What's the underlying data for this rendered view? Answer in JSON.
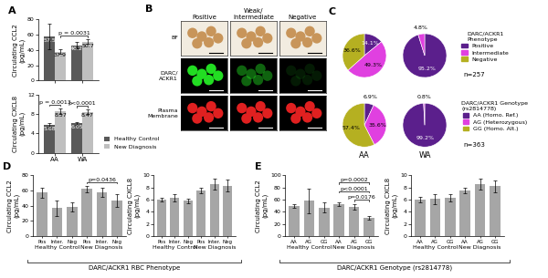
{
  "chart_data": [
    {
      "type": "bar",
      "panel": "A",
      "ylabel": "Circulating CCL2\n(pg/mL)",
      "categories": [
        "AA",
        "WA"
      ],
      "series": [
        {
          "name": "Healthy Control",
          "color": "#595959",
          "values": [
            57.5,
            46.2
          ],
          "errors": [
            17,
            4
          ]
        },
        {
          "name": "New Diagnosis",
          "color": "#bfbfbf",
          "values": [
            37.9,
            50.7
          ],
          "errors": [
            3,
            3
          ]
        }
      ],
      "ylim": [
        0,
        80
      ],
      "yticks": [
        0,
        20,
        40,
        60,
        80
      ],
      "data_labels": true,
      "tick_labels": "y",
      "comparisons": [
        {
          "label": "p = 0.0031",
          "between": [
            [
              0,
              1
            ],
            [
              1,
              1
            ]
          ]
        }
      ]
    },
    {
      "type": "bar",
      "ylabel": "Circulating CXCL8\n(pg/mL)",
      "categories": [
        "AA",
        "WA"
      ],
      "series": [
        {
          "name": "Healthy Control",
          "color": "#595959",
          "values": [
            5.68,
            6.05
          ],
          "errors": [
            0.4,
            0.3
          ]
        },
        {
          "name": "New Diagnosis",
          "color": "#bfbfbf",
          "values": [
            8.57,
            8.47
          ],
          "errors": [
            0.6,
            0.4
          ]
        }
      ],
      "ylim": [
        0,
        12
      ],
      "yticks": [
        0,
        4,
        8,
        12
      ],
      "data_labels": true,
      "legend": "lower left",
      "comparisons": [
        {
          "label": "p = 0.0013",
          "between": [
            [
              0,
              0
            ],
            [
              0,
              1
            ]
          ]
        },
        {
          "label": "p<0.0001",
          "between": [
            [
              1,
              0
            ],
            [
              1,
              1
            ]
          ]
        }
      ]
    },
    {
      "type": "pie",
      "panel": "C",
      "categories": [
        "Positive",
        "Intermediate",
        "Negative"
      ],
      "values": [
        14.1,
        49.3,
        36.6
      ],
      "value_labels": [
        "14.1%",
        "49.3%",
        "36.6%"
      ],
      "colors": [
        "#5b1f8c",
        "#e040e0",
        "#b5b021"
      ],
      "legend": "upper left",
      "legend_title": "DARC/ACKR1\nPhenotype",
      "n_label": "n=257"
    },
    {
      "type": "pie",
      "categories": [
        "Positive",
        "Intermediate"
      ],
      "values": [
        95.2,
        4.8
      ],
      "value_labels": [
        "95.2%",
        "4.8%"
      ],
      "colors": [
        "#5b1f8c",
        "#e040e0"
      ]
    },
    {
      "type": "pie",
      "title": "AA",
      "categories": [
        "AA (Homo. Ref.)",
        "AG (Heterozygous)",
        "GG (Homo. Alt.)"
      ],
      "values": [
        6.9,
        35.6,
        57.4
      ],
      "value_labels": [
        "6.9%",
        "35.6%",
        "57.4%"
      ],
      "colors": [
        "#5b1f8c",
        "#e040e0",
        "#b5b021"
      ],
      "legend": "upper left",
      "legend_title": "DARC/ACKR1 Genotype\n(rs2814778)",
      "n_label": "n=363"
    },
    {
      "type": "pie",
      "title": "WA",
      "categories": [
        "AA (Homo. Ref.)",
        "AG (Heterozygous)"
      ],
      "values": [
        99.2,
        0.8
      ],
      "value_labels": [
        "99.2%",
        "0.8%"
      ],
      "colors": [
        "#5b1f8c",
        "#e040e0"
      ]
    },
    {
      "type": "bar",
      "panel": "D",
      "ylabel": "Circulating CCL2\n(pg/mL)",
      "categories": [
        "Pos",
        "Inter.",
        "Neg",
        "Pos",
        "Inter.",
        "Neg"
      ],
      "values": [
        57,
        37,
        39,
        62,
        57,
        47
      ],
      "errors": [
        7,
        10,
        6,
        4,
        6,
        8
      ],
      "color": "#a6a6a6",
      "groups": [
        {
          "label": "Healthy Control",
          "members": [
            0,
            1,
            2
          ]
        },
        {
          "label": "New Diagnosis",
          "members": [
            3,
            4,
            5
          ]
        }
      ],
      "ylim": [
        0,
        80
      ],
      "yticks": [
        0,
        20,
        40,
        60,
        80
      ],
      "comparisons": [
        {
          "label": "p=0.0436",
          "between": [
            3,
            5
          ]
        }
      ],
      "footer": "DARC/ACKR1 RBC Phenotype"
    },
    {
      "type": "bar",
      "ylabel": "Circulating CXCL8\n(pg/mL)",
      "categories": [
        "Pos",
        "Inter.",
        "Neg",
        "Pos",
        "Inter.",
        "Neg"
      ],
      "values": [
        6,
        6.3,
        5.8,
        7.5,
        8.5,
        8.3
      ],
      "errors": [
        0.3,
        0.6,
        0.4,
        0.4,
        0.9,
        1.0
      ],
      "color": "#a6a6a6",
      "groups": [
        {
          "label": "Healthy Control",
          "members": [
            0,
            1,
            2
          ]
        },
        {
          "label": "New Diagnosis",
          "members": [
            3,
            4,
            5
          ]
        }
      ],
      "ylim": [
        0,
        10
      ],
      "yticks": [
        0,
        2,
        4,
        6,
        8,
        10
      ]
    },
    {
      "type": "bar",
      "panel": "E",
      "ylabel": "Circulating CCL2\n(pg/mL)",
      "categories": [
        "AA",
        "AG",
        "GG",
        "AA",
        "AG",
        "GG"
      ],
      "values": [
        50,
        58,
        47,
        52,
        48,
        30
      ],
      "errors": [
        3,
        20,
        8,
        3,
        5,
        3
      ],
      "color": "#a6a6a6",
      "groups": [
        {
          "label": "Healthy Control",
          "members": [
            0,
            1,
            2
          ]
        },
        {
          "label": "New Diagnosis",
          "members": [
            3,
            4,
            5
          ]
        }
      ],
      "ylim": [
        0,
        100
      ],
      "yticks": [
        0,
        20,
        40,
        60,
        80,
        100
      ],
      "comparisons": [
        {
          "label": "p=0.0176",
          "between": [
            4,
            5
          ]
        },
        {
          "label": "p<0.0001",
          "between": [
            3,
            5
          ]
        },
        {
          "label": "p=0.0002",
          "between": [
            3,
            5
          ]
        }
      ],
      "footer": "DARC/ACKR1 Genotype (rs2814778)"
    },
    {
      "type": "bar",
      "ylabel": "Circulating CXCL8\n(pg/mL)",
      "categories": [
        "AA",
        "AG",
        "GG",
        "AA",
        "AG",
        "GG"
      ],
      "values": [
        6,
        6.1,
        6.3,
        7.5,
        8.5,
        8.2
      ],
      "errors": [
        0.4,
        0.8,
        0.6,
        0.4,
        0.9,
        1.0
      ],
      "color": "#a6a6a6",
      "groups": [
        {
          "label": "Healthy Control",
          "members": [
            0,
            1,
            2
          ]
        },
        {
          "label": "New Diagnosis",
          "members": [
            3,
            4,
            5
          ]
        }
      ],
      "ylim": [
        0,
        10
      ],
      "yticks": [
        0,
        2,
        4,
        6,
        8,
        10
      ]
    }
  ],
  "image_panel": {
    "panel": "B",
    "columns": [
      "Positive",
      "Weak/\nIntermediate",
      "Negative"
    ],
    "rows": [
      "BF",
      "DARC/\nACKR1",
      "Plasma\nMembrane"
    ]
  }
}
